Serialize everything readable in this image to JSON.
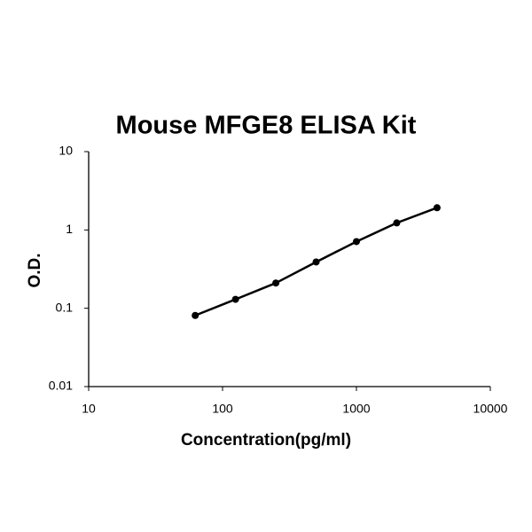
{
  "chart_data": {
    "type": "line",
    "title": "Mouse MFGE8 ELISA Kit",
    "x_label": "Concentration(pg/ml)",
    "y_label": "O.D.",
    "x_scale": "log",
    "y_scale": "log",
    "x": [
      62.5,
      125,
      250,
      500,
      1000,
      2000,
      4000
    ],
    "series": [
      {
        "color": "#000000",
        "values": [
          0.081,
          0.13,
          0.21,
          0.39,
          0.71,
          1.23,
          1.92
        ]
      }
    ],
    "xlim": [
      10,
      10000
    ],
    "xticks": [
      10,
      100,
      1000,
      10000
    ],
    "ylim": [
      0.01,
      10
    ],
    "yticks": [
      0.01,
      0.1,
      1,
      10
    ]
  }
}
